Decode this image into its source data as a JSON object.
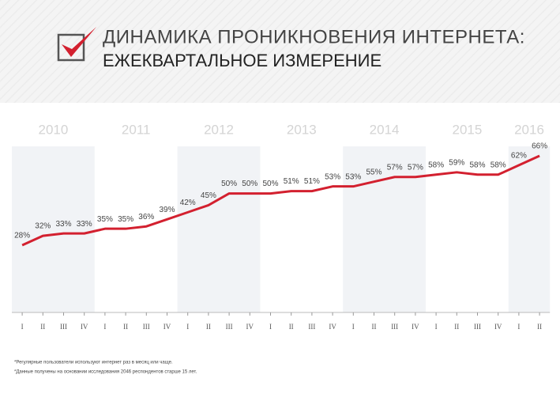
{
  "chart_data": {
    "type": "line",
    "title": "ДИНАМИКА ПРОНИКНОВЕНИЯ ИНТЕРНЕТА:",
    "subtitle": "ЕЖЕКВАРТАЛЬНОЕ ИЗМЕРЕНИЕ",
    "years": [
      "2010",
      "2011",
      "2012",
      "2013",
      "2014",
      "2015",
      "2016"
    ],
    "categories": [
      "I",
      "II",
      "III",
      "IV",
      "I",
      "II",
      "III",
      "IV",
      "I",
      "II",
      "III",
      "IV",
      "I",
      "II",
      "III",
      "IV",
      "I",
      "II",
      "III",
      "IV",
      "I",
      "II",
      "III",
      "IV",
      "I",
      "II"
    ],
    "values": [
      28,
      32,
      33,
      33,
      35,
      35,
      36,
      39,
      42,
      45,
      50,
      50,
      50,
      51,
      51,
      53,
      53,
      55,
      57,
      57,
      58,
      59,
      58,
      58,
      62,
      66
    ],
    "value_labels": [
      "28%",
      "32%",
      "33%",
      "33%",
      "35%",
      "35%",
      "36%",
      "39%",
      "42%",
      "45%",
      "50%",
      "50%",
      "50%",
      "51%",
      "51%",
      "53%",
      "53%",
      "55%",
      "57%",
      "57%",
      "58%",
      "59%",
      "58%",
      "58%",
      "62%",
      "66%"
    ],
    "color": "#d3202f",
    "notes": [
      "*Регулярные пользователи используют интернет раз в месяц или чаще.",
      "*Данные получены на основании исследования 2046 респондентов старше 15 лет."
    ]
  }
}
